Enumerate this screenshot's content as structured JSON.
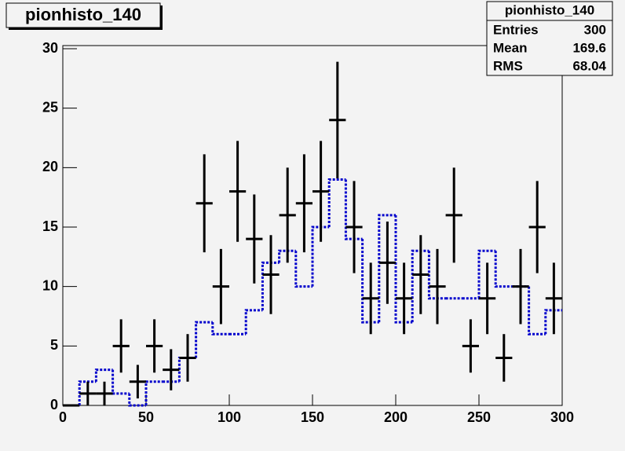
{
  "chart_data": {
    "type": "histogram",
    "title": "pionhisto_140",
    "bins": [
      0,
      10,
      20,
      30,
      40,
      50,
      60,
      70,
      80,
      90,
      100,
      110,
      120,
      130,
      140,
      150,
      160,
      170,
      180,
      190,
      200,
      210,
      220,
      230,
      240,
      250,
      260,
      270,
      280,
      290,
      300
    ],
    "series": [
      {
        "color": "#000000",
        "values": [
          0,
          1,
          1,
          5,
          2,
          5,
          3,
          4,
          17,
          10,
          18,
          14,
          11,
          16,
          17,
          18,
          24,
          15,
          9,
          12,
          9,
          11,
          10,
          16,
          5,
          9,
          4,
          10,
          15,
          9
        ],
        "errors": [
          0,
          1,
          1,
          2.24,
          1.41,
          2.24,
          1.73,
          2,
          4.12,
          3.16,
          4.24,
          3.74,
          3.32,
          4,
          4.12,
          4.24,
          4.9,
          3.87,
          3,
          3.46,
          3,
          3.32,
          3.16,
          4,
          2.24,
          3,
          2,
          3.16,
          3.87,
          3
        ]
      },
      {
        "color": "#0000cc",
        "values": [
          0,
          2,
          3,
          1,
          0,
          2,
          2,
          4,
          7,
          6,
          6,
          8,
          12,
          13,
          10,
          15,
          19,
          14,
          7,
          16,
          7,
          13,
          9,
          9,
          9,
          13,
          10,
          10,
          6,
          8
        ]
      }
    ],
    "xlim": [
      0,
      300
    ],
    "xticks": [
      0,
      50,
      100,
      150,
      200,
      250,
      300
    ],
    "ylim": [
      0,
      30
    ],
    "yticks": [
      0,
      5,
      10,
      15,
      20,
      25,
      30
    ],
    "stats": {
      "title": "pionhisto_140",
      "rows": [
        [
          "Entries",
          "300"
        ],
        [
          "Mean",
          "169.6"
        ],
        [
          "RMS",
          "68.04"
        ]
      ]
    }
  }
}
